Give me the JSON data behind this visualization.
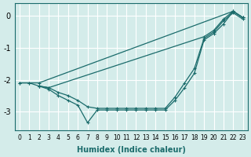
{
  "xlabel": "Humidex (Indice chaleur)",
  "ylabel": "",
  "bg_color": "#d4ecea",
  "grid_color": "#ffffff",
  "line_color": "#1a6b6b",
  "marker": "+",
  "xlim": [
    -0.5,
    23.5
  ],
  "ylim": [
    -3.6,
    0.4
  ],
  "yticks": [
    0,
    -1,
    -2,
    -3
  ],
  "xticks": [
    0,
    1,
    2,
    3,
    4,
    5,
    6,
    7,
    8,
    9,
    10,
    11,
    12,
    13,
    14,
    15,
    16,
    17,
    18,
    19,
    20,
    21,
    22,
    23
  ],
  "lines": [
    {
      "x": [
        0,
        1,
        2,
        22,
        23
      ],
      "y": [
        -2.1,
        -2.1,
        -2.1,
        0.15,
        -0.05
      ]
    },
    {
      "x": [
        0,
        1,
        2,
        3,
        19,
        20,
        21,
        22,
        23
      ],
      "y": [
        -2.1,
        -2.1,
        -2.2,
        -2.25,
        -0.65,
        -0.45,
        -0.1,
        0.15,
        -0.05
      ]
    },
    {
      "x": [
        2,
        3,
        4,
        5,
        6,
        7,
        8,
        9,
        10,
        11,
        12,
        13,
        14,
        15,
        16,
        17,
        18,
        19,
        20,
        21,
        22,
        23
      ],
      "y": [
        -2.2,
        -2.25,
        -2.4,
        -2.5,
        -2.65,
        -2.85,
        -2.9,
        -2.9,
        -2.9,
        -2.9,
        -2.9,
        -2.9,
        -2.9,
        -2.9,
        -2.55,
        -2.1,
        -1.65,
        -0.7,
        -0.5,
        -0.15,
        0.1,
        -0.1
      ]
    },
    {
      "x": [
        2,
        3,
        4,
        5,
        6,
        7,
        8,
        9,
        10,
        11,
        12,
        13,
        14,
        15,
        16,
        17,
        18,
        19,
        20,
        21,
        22,
        23
      ],
      "y": [
        -2.2,
        -2.3,
        -2.5,
        -2.65,
        -2.8,
        -3.35,
        -2.95,
        -2.95,
        -2.95,
        -2.95,
        -2.95,
        -2.95,
        -2.95,
        -2.95,
        -2.65,
        -2.25,
        -1.8,
        -0.75,
        -0.55,
        -0.25,
        0.15,
        -0.05
      ]
    }
  ]
}
